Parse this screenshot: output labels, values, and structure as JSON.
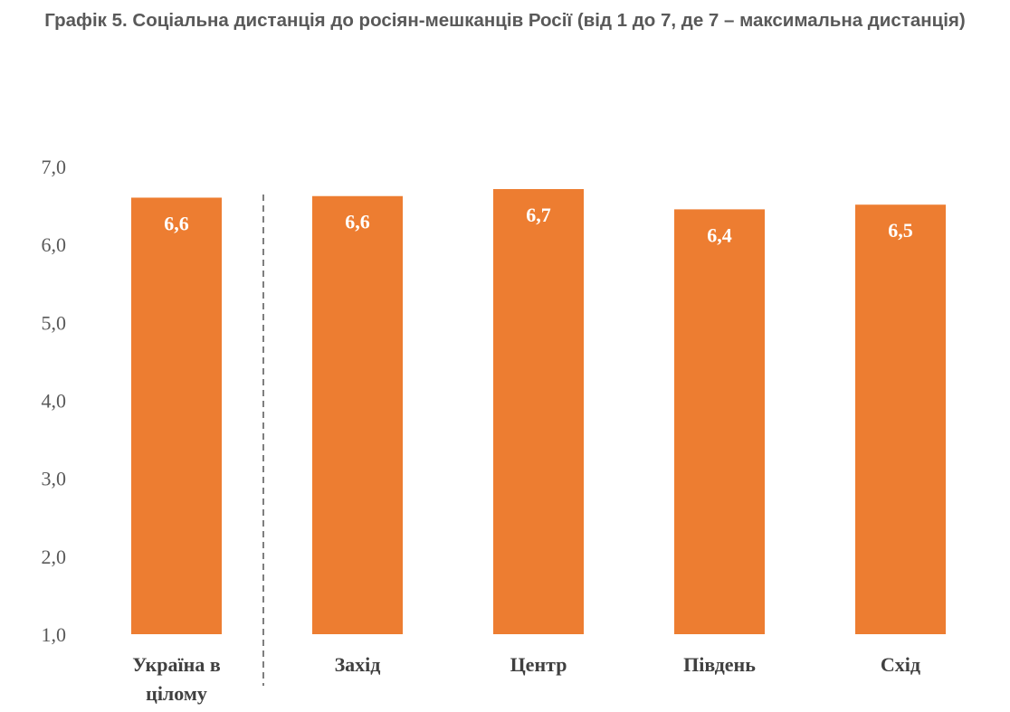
{
  "chart_data": {
    "type": "bar",
    "title": "Графік 5. Соціальна дистанція до росіян-мешканців Росії (від 1 до 7, де 7 – максимальна дистанція)",
    "categories": [
      "Україна в цілому",
      "Захід",
      "Центр",
      "Південь",
      "Схід"
    ],
    "category_lines": [
      [
        "Україна в",
        "цілому"
      ],
      [
        "Захід"
      ],
      [
        "Центр"
      ],
      [
        "Південь"
      ],
      [
        "Схід"
      ]
    ],
    "values": [
      6.6,
      6.62,
      6.71,
      6.45,
      6.51
    ],
    "data_labels": [
      "6,6",
      "6,6",
      "6,7",
      "6,4",
      "6,5"
    ],
    "yticks": [
      "1,0",
      "2,0",
      "3,0",
      "4,0",
      "5,0",
      "6,0",
      "7,0"
    ],
    "ylim": [
      1,
      7
    ],
    "grid": false,
    "legend": "none",
    "separator_after_category": 0,
    "bar_color": "#ED7D31"
  }
}
